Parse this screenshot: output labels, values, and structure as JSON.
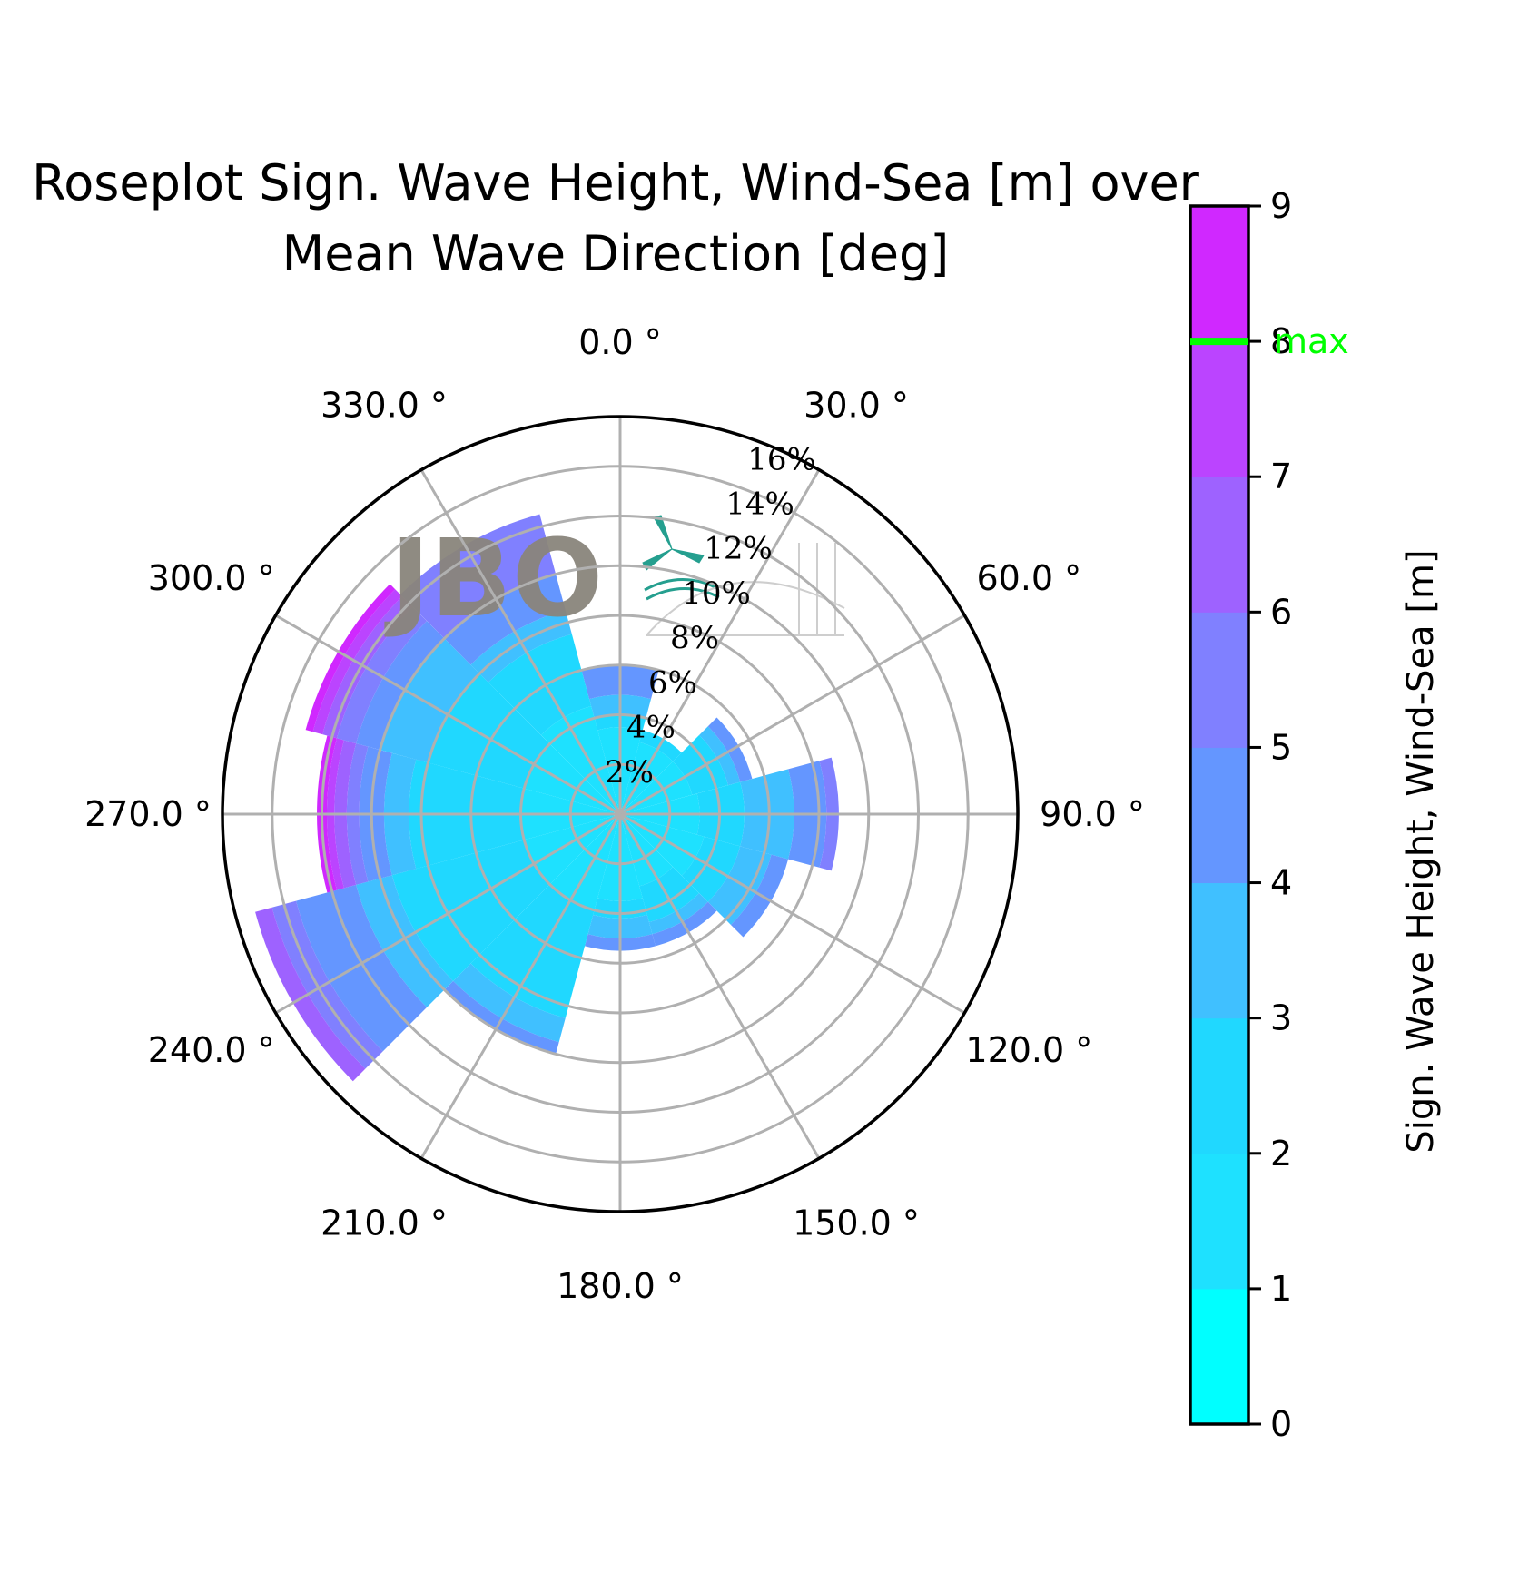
{
  "chart_data": {
    "type": "rose",
    "title_line1": "Roseplot Sign.  Wave Height, Wind-Sea [m] over",
    "title_line2": "Mean Wave Direction [deg]",
    "angle_ticks": [
      0,
      30,
      60,
      90,
      120,
      150,
      180,
      210,
      240,
      270,
      300,
      330
    ],
    "angle_tick_labels": [
      "0.0 °",
      "30.0 °",
      "60.0 °",
      "90.0 °",
      "120.0 °",
      "150.0 °",
      "180.0 °",
      "210.0 °",
      "240.0 °",
      "270.0 °",
      "300.0 °",
      "330.0 °"
    ],
    "radial_ticks": [
      2,
      4,
      6,
      8,
      10,
      12,
      14,
      16
    ],
    "radial_tick_labels": [
      "2%",
      "4%",
      "6%",
      "8%",
      "10%",
      "12%",
      "14%",
      "16%"
    ],
    "radial_max": 16,
    "radial_label_angle": 30,
    "direction_sector_width_deg": 30,
    "sectors": [
      {
        "direction": 0,
        "bins": [
          0,
          3.5,
          4.0,
          4.8,
          6.0
        ]
      },
      {
        "direction": 30,
        "bins": [
          0,
          3.0,
          3.5
        ]
      },
      {
        "direction": 60,
        "bins": [
          0,
          3.0,
          4.5,
          5.0,
          5.5
        ]
      },
      {
        "direction": 90,
        "bins": [
          0,
          3.2,
          5.0,
          7.0,
          8.3,
          8.8
        ]
      },
      {
        "direction": 120,
        "bins": [
          0,
          3.5,
          5.0,
          6.3,
          7.0
        ]
      },
      {
        "direction": 150,
        "bins": [
          0,
          3.0,
          4.5,
          5.0,
          5.5
        ]
      },
      {
        "direction": 180,
        "bins": [
          0,
          3.5,
          4.2,
          5.0,
          5.5
        ]
      },
      {
        "direction": 210,
        "bins": [
          0,
          4.0,
          8.5,
          9.5,
          10.0
        ]
      },
      {
        "direction": 240,
        "bins": [
          0,
          4.0,
          9.5,
          11.0,
          13.5,
          14.5,
          15.2
        ]
      },
      {
        "direction": 270,
        "bins": [
          0,
          4.0,
          8.5,
          9.5,
          10.5,
          11.0,
          11.5,
          11.8,
          12.2
        ]
      },
      {
        "direction": 300,
        "bins": [
          0,
          4.0,
          8.0,
          10.0,
          11.0,
          11.8,
          12.4,
          12.8,
          13.1
        ]
      },
      {
        "direction": 330,
        "bins": [
          0,
          4.5,
          7.5,
          8.5,
          10.0,
          12.5
        ]
      }
    ],
    "colorbar": {
      "label": "Sign.  Wave Height, Wind-Sea [m]",
      "min": 0,
      "max": 9,
      "ticks": [
        "0",
        "1",
        "2",
        "3",
        "4",
        "5",
        "6",
        "7",
        "8",
        "9"
      ],
      "colors": [
        "#00ffff",
        "#1ee1ff",
        "#20d8ff",
        "#40c0ff",
        "#6496ff",
        "#8080ff",
        "#9e62ff",
        "#bb44ff",
        "#d028ff",
        "#ff00ff"
      ],
      "max_marker_value": 8.0,
      "max_marker_label": "max",
      "max_marker_color": "#00ff00"
    }
  },
  "logo": {
    "text": "JBO"
  }
}
